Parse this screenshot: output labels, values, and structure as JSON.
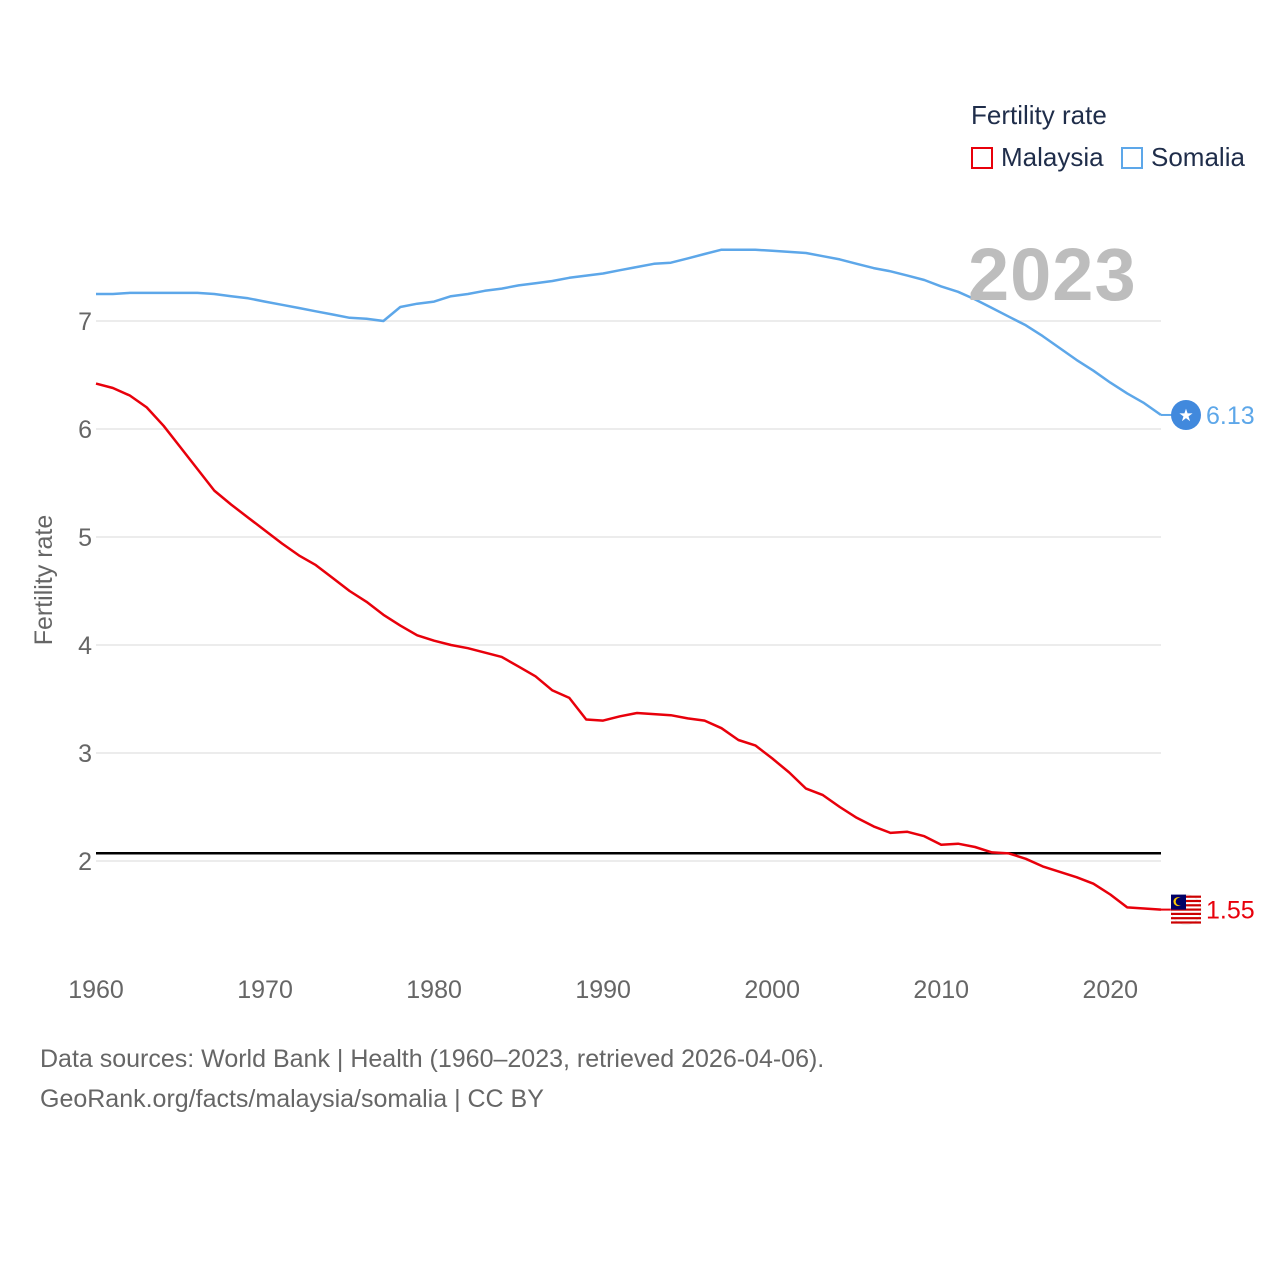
{
  "chart_data": {
    "type": "line",
    "title": "Fertility rate",
    "ylabel": "Fertility rate",
    "xlabel": "",
    "year_label": "2023",
    "xlim": [
      1960,
      2023
    ],
    "ylim": [
      1.0,
      7.9
    ],
    "yticks": [
      2,
      3,
      4,
      5,
      6,
      7
    ],
    "xticks": [
      1960,
      1970,
      1980,
      1990,
      2000,
      2010,
      2020
    ],
    "reference_line": 2.1,
    "x": [
      1960,
      1961,
      1962,
      1963,
      1964,
      1965,
      1966,
      1967,
      1968,
      1969,
      1970,
      1971,
      1972,
      1973,
      1974,
      1975,
      1976,
      1977,
      1978,
      1979,
      1980,
      1981,
      1982,
      1983,
      1984,
      1985,
      1986,
      1987,
      1988,
      1989,
      1990,
      1991,
      1992,
      1993,
      1994,
      1995,
      1996,
      1997,
      1998,
      1999,
      2000,
      2001,
      2002,
      2003,
      2004,
      2005,
      2006,
      2007,
      2008,
      2009,
      2010,
      2011,
      2012,
      2013,
      2014,
      2015,
      2016,
      2017,
      2018,
      2019,
      2020,
      2021,
      2022,
      2023
    ],
    "series": [
      {
        "name": "Malaysia",
        "color": "#e8000b",
        "end_label": "1.55",
        "values": [
          6.42,
          6.38,
          6.31,
          6.2,
          6.03,
          5.83,
          5.63,
          5.43,
          5.3,
          5.18,
          5.06,
          4.94,
          4.83,
          4.74,
          4.62,
          4.5,
          4.4,
          4.28,
          4.18,
          4.09,
          4.04,
          4.0,
          3.97,
          3.93,
          3.89,
          3.8,
          3.71,
          3.58,
          3.51,
          3.31,
          3.3,
          3.34,
          3.37,
          3.36,
          3.35,
          3.32,
          3.3,
          3.23,
          3.12,
          3.07,
          2.95,
          2.82,
          2.67,
          2.61,
          2.5,
          2.4,
          2.32,
          2.26,
          2.27,
          2.23,
          2.15,
          2.16,
          2.13,
          2.08,
          2.07,
          2.02,
          1.95,
          1.9,
          1.85,
          1.79,
          1.69,
          1.57,
          1.56,
          1.55
        ]
      },
      {
        "name": "Somalia",
        "color": "#5da7e9",
        "end_label": "6.13",
        "values": [
          7.25,
          7.25,
          7.26,
          7.26,
          7.26,
          7.26,
          7.26,
          7.25,
          7.23,
          7.21,
          7.18,
          7.15,
          7.12,
          7.09,
          7.06,
          7.03,
          7.02,
          7.0,
          7.13,
          7.16,
          7.18,
          7.23,
          7.25,
          7.28,
          7.3,
          7.33,
          7.35,
          7.37,
          7.4,
          7.42,
          7.44,
          7.47,
          7.5,
          7.53,
          7.54,
          7.58,
          7.62,
          7.66,
          7.66,
          7.66,
          7.65,
          7.64,
          7.63,
          7.6,
          7.57,
          7.53,
          7.49,
          7.46,
          7.42,
          7.38,
          7.32,
          7.27,
          7.2,
          7.12,
          7.04,
          6.96,
          6.86,
          6.75,
          6.64,
          6.54,
          6.43,
          6.33,
          6.24,
          6.13
        ]
      }
    ]
  },
  "legend": {
    "title": "Fertility rate",
    "items": [
      "Malaysia",
      "Somalia"
    ]
  },
  "footer": {
    "line1": "Data sources: World Bank | Health (1960–2023, retrieved 2026-04-06).",
    "line2": "GeoRank.org/facts/malaysia/somalia | CC BY"
  },
  "icons": {
    "malaysia": "malaysia-flag-icon",
    "somalia": "somalia-flag-icon"
  }
}
